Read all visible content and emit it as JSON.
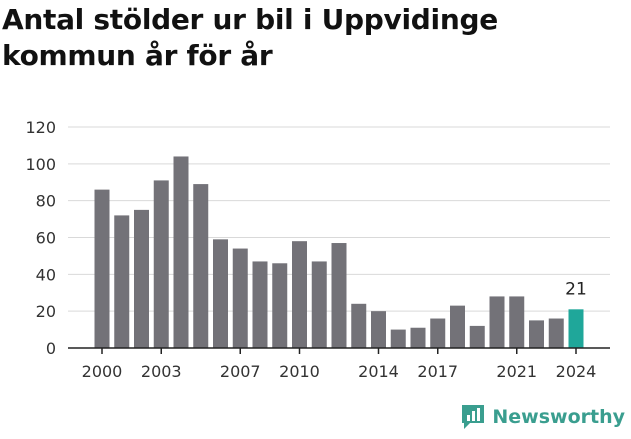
{
  "title": "Antal stölder ur bil i Uppvidinge kommun år för år",
  "brand": {
    "name": "Newsworthy",
    "icon": "newsworthy-logo-icon",
    "color": "#3a9e8f"
  },
  "colors": {
    "bar": "#737278",
    "highlight": "#1fa79a",
    "grid": "#d9d9d9",
    "axis": "#222222"
  },
  "chart_data": {
    "type": "bar",
    "title": "Antal stölder ur bil i Uppvidinge kommun år för år",
    "xlabel": "",
    "ylabel": "",
    "categories": [
      "2000",
      "2001",
      "2002",
      "2003",
      "2004",
      "2005",
      "2006",
      "2007",
      "2008",
      "2009",
      "2010",
      "2011",
      "2012",
      "2013",
      "2014",
      "2015",
      "2016",
      "2017",
      "2018",
      "2019",
      "2020",
      "2021",
      "2022",
      "2023",
      "2024"
    ],
    "values": [
      86,
      72,
      75,
      91,
      104,
      89,
      59,
      54,
      47,
      46,
      58,
      47,
      57,
      24,
      20,
      10,
      11,
      16,
      23,
      12,
      28,
      28,
      15,
      16,
      21
    ],
    "ylim": [
      0,
      120
    ],
    "yticks": [
      0,
      20,
      40,
      60,
      80,
      100,
      120
    ],
    "xtick_labels": [
      "2000",
      "2003",
      "2007",
      "2010",
      "2014",
      "2017",
      "2021",
      "2024"
    ],
    "highlight_category": "2024",
    "data_labels": [
      {
        "category": "2024",
        "text": "21"
      }
    ],
    "grid": true,
    "legend": "none"
  }
}
